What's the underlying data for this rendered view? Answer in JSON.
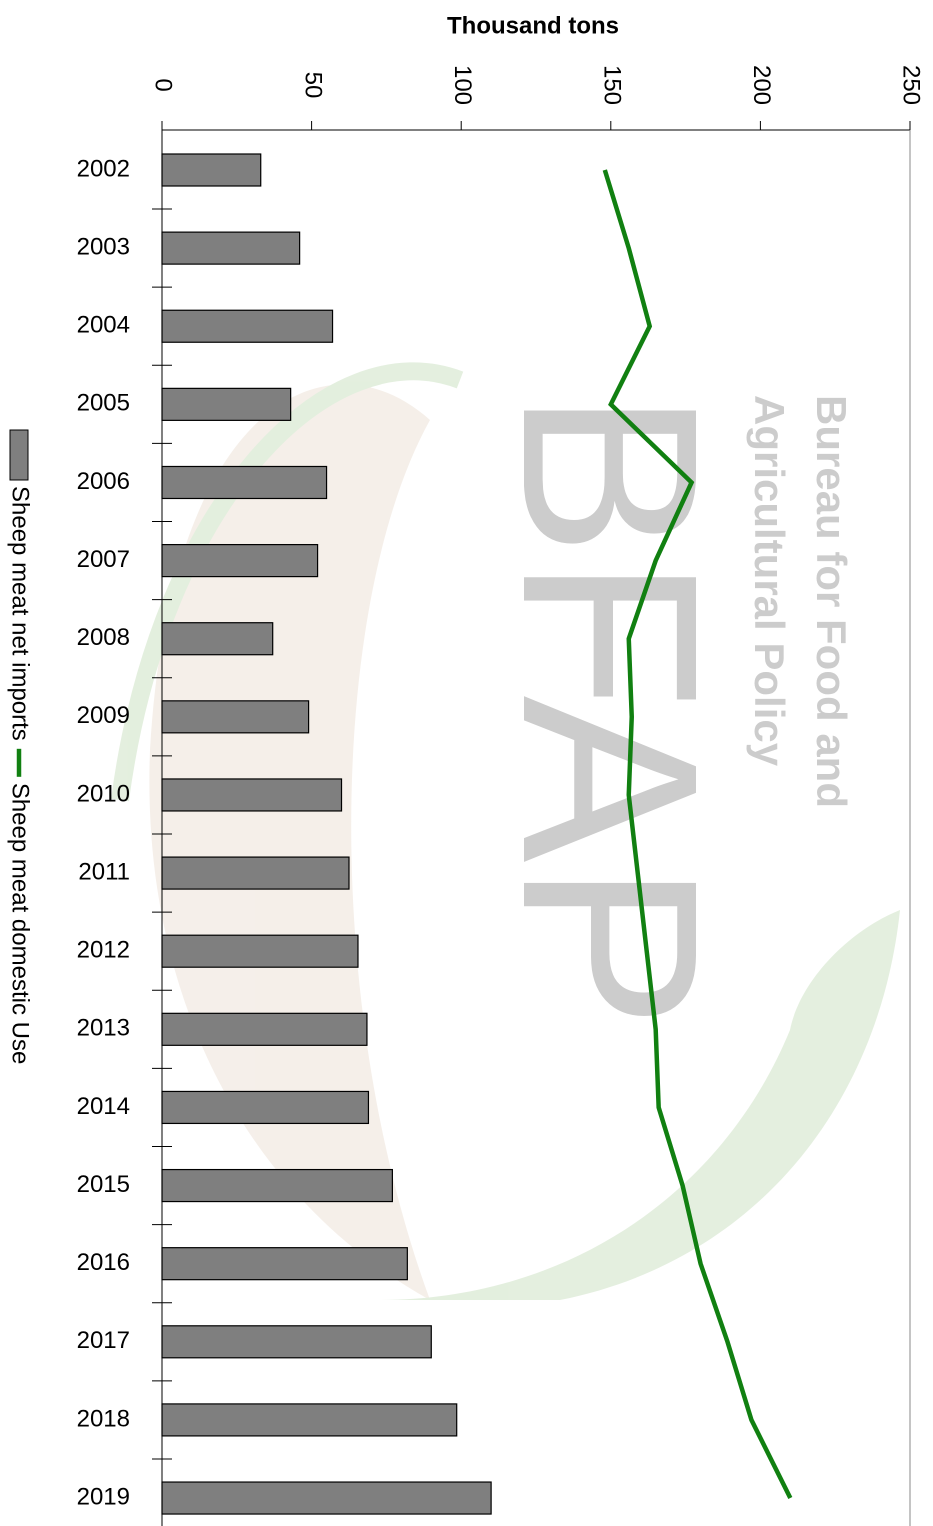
{
  "chart_data": {
    "type": "bar-line-horizontal",
    "axis_title": "Thousand tons",
    "categories": [
      "2002",
      "2003",
      "2004",
      "2005",
      "2006",
      "2007",
      "2008",
      "2009",
      "2010",
      "2011",
      "2012",
      "2013",
      "2014",
      "2015",
      "2016",
      "2017",
      "2018",
      "2019"
    ],
    "series": [
      {
        "name": "Sheep meat net imports",
        "type": "bar",
        "color": "#7f7f7f",
        "values": [
          33,
          46,
          57,
          43,
          55,
          52,
          37,
          49,
          60,
          62.5,
          65.5,
          68.5,
          69,
          77,
          82,
          90,
          98.5,
          110
        ]
      },
      {
        "name": "Sheep meat domestic Use",
        "type": "line",
        "color": "#118011",
        "values": [
          148,
          156,
          163,
          150,
          177,
          165,
          156,
          157,
          156,
          159,
          162,
          165,
          166,
          174,
          180,
          189,
          197,
          210
        ]
      }
    ],
    "xlim": [
      0,
      250
    ],
    "xticks": [
      0,
      50,
      100,
      150,
      200,
      250
    ],
    "watermark": {
      "logo": "BFAP",
      "lines": [
        "Bureau for Food and",
        "Agricultural Policy"
      ]
    }
  }
}
